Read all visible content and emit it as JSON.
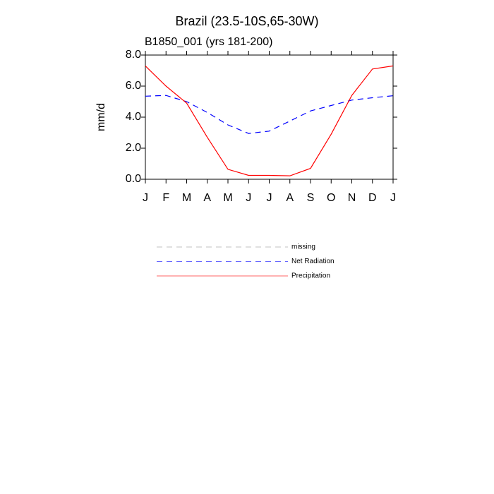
{
  "chart_data": {
    "type": "line",
    "title": "Brazil (23.5-10S,65-30W)",
    "subtitle": "B1850_001 (yrs 181-200)",
    "y_label": "mm/d",
    "categories": [
      "J",
      "F",
      "M",
      "A",
      "M",
      "J",
      "J",
      "A",
      "S",
      "O",
      "N",
      "D",
      "J"
    ],
    "series": [
      {
        "name": "missing",
        "color": "#999999",
        "dash": "dashed",
        "values": [
          null,
          null,
          null,
          null,
          null,
          null,
          null,
          null,
          null,
          null,
          null,
          null,
          null
        ]
      },
      {
        "name": "Net Radiation",
        "color": "#0000ff",
        "dash": "dashed",
        "values": [
          5.35,
          5.4,
          5.0,
          4.3,
          3.5,
          2.95,
          3.1,
          3.75,
          4.4,
          4.75,
          5.1,
          5.25,
          5.38
        ]
      },
      {
        "name": "Precipitation",
        "color": "#ff0000",
        "dash": "solid",
        "values": [
          7.3,
          6.0,
          4.9,
          2.7,
          0.64,
          0.25,
          0.25,
          0.22,
          0.7,
          2.9,
          5.4,
          7.1,
          7.3
        ]
      }
    ],
    "ylim": [
      0,
      8
    ],
    "yticks": [
      {
        "value": 0,
        "label": "0.0"
      },
      {
        "value": 2,
        "label": "2.0"
      },
      {
        "value": 4,
        "label": "4.0"
      },
      {
        "value": 6,
        "label": "6.0"
      },
      {
        "value": 8,
        "label": "8.0"
      }
    ],
    "grid": false
  }
}
